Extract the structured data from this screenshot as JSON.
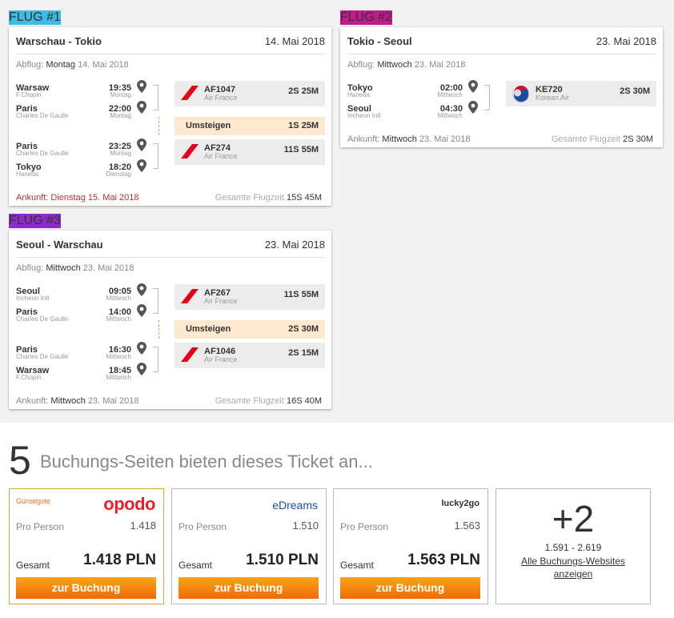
{
  "flights": [
    {
      "tab": "FLUG #1",
      "route": "Warschau - Tokio",
      "date": "14. Mai 2018",
      "departure_label": "Abflug:",
      "departure_day": "Montag",
      "departure_date": "14. Mai 2018",
      "segments": [
        {
          "from": {
            "city": "Warsaw",
            "airport": "F.Chopin",
            "time": "19:35",
            "day": "Montag"
          },
          "to": {
            "city": "Paris",
            "airport": "Charles De Gaulle",
            "time": "22:00",
            "day": "Montag"
          },
          "flight": "AF1047",
          "airline": "Air France",
          "duration": "2S 25M"
        },
        {
          "from": {
            "city": "Paris",
            "airport": "Charles De Gaulle",
            "time": "23:25",
            "day": "Montag"
          },
          "to": {
            "city": "Tokyo",
            "airport": "Haneda",
            "time": "18:20",
            "day": "Dienstag"
          },
          "flight": "AF274",
          "airline": "Air France",
          "duration": "11S 55M"
        }
      ],
      "layovers": [
        {
          "label": "Umsteigen",
          "duration": "1S 25M"
        }
      ],
      "arrival_label": "Ankunft:",
      "arrival_day": "Dienstag",
      "arrival_date": "15. Mai 2018",
      "total_label": "Gesamte Flugzeit",
      "total": "15S 45M"
    },
    {
      "tab": "FLUG #2",
      "route": "Tokio - Seoul",
      "date": "23. Mai 2018",
      "departure_label": "Abflug:",
      "departure_day": "Mittwoch",
      "departure_date": "23. Mai 2018",
      "segments": [
        {
          "from": {
            "city": "Tokyo",
            "airport": "Haneda",
            "time": "02:00",
            "day": "Mittwoch"
          },
          "to": {
            "city": "Seoul",
            "airport": "Incheon Intl",
            "time": "04:30",
            "day": "Mittwoch"
          },
          "flight": "KE720",
          "airline": "Korean Air",
          "duration": "2S 30M"
        }
      ],
      "layovers": [],
      "arrival_label": "Ankunft:",
      "arrival_day": "Mittwoch",
      "arrival_date": "23. Mai 2018",
      "total_label": "Gesamte Flugzeit",
      "total": "2S 30M"
    },
    {
      "tab": "FLUG #3",
      "route": "Seoul - Warschau",
      "date": "23. Mai 2018",
      "departure_label": "Abflug:",
      "departure_day": "Mittwoch",
      "departure_date": "23. Mai 2018",
      "segments": [
        {
          "from": {
            "city": "Seoul",
            "airport": "Incheon Intl",
            "time": "09:05",
            "day": "Mittwoch"
          },
          "to": {
            "city": "Paris",
            "airport": "Charles De Gaulle",
            "time": "14:00",
            "day": "Mittwoch"
          },
          "flight": "AF267",
          "airline": "Air France",
          "duration": "11S 55M"
        },
        {
          "from": {
            "city": "Paris",
            "airport": "Charles De Gaulle",
            "time": "16:30",
            "day": "Mittwoch"
          },
          "to": {
            "city": "Warsaw",
            "airport": "F.Chopin",
            "time": "18:45",
            "day": "Mittwoch"
          },
          "flight": "AF1046",
          "airline": "Air France",
          "duration": "2S 15M"
        }
      ],
      "layovers": [
        {
          "label": "Umsteigen",
          "duration": "2S 30M"
        }
      ],
      "arrival_label": "Ankunft:",
      "arrival_day": "Mittwoch",
      "arrival_date": "23. Mai 2018",
      "total_label": "Gesamte Flugzeit",
      "total": "16S 40M"
    }
  ],
  "booking": {
    "count": "5",
    "heading": "Buchungs-Seiten bieten dieses Ticket an...",
    "providers": [
      {
        "badge": "Günstigste",
        "logo": "opodo",
        "per_person_label": "Pro Person",
        "per_person": "1.418",
        "total_label": "Gesamt",
        "total": "1.418 PLN",
        "button": "zur Buchung"
      },
      {
        "logo": "eDreams",
        "per_person_label": "Pro Person",
        "per_person": "1.510",
        "total_label": "Gesamt",
        "total": "1.510 PLN",
        "button": "zur Buchung"
      },
      {
        "logo": "lucky2go",
        "per_person_label": "Pro Person",
        "per_person": "1.563",
        "total_label": "Gesamt",
        "total": "1.563 PLN",
        "button": "zur Buchung"
      }
    ],
    "more": {
      "count": "+2",
      "range": "1.591 - 2.619",
      "link": "Alle Buchungs-Websites anzeigen"
    }
  }
}
